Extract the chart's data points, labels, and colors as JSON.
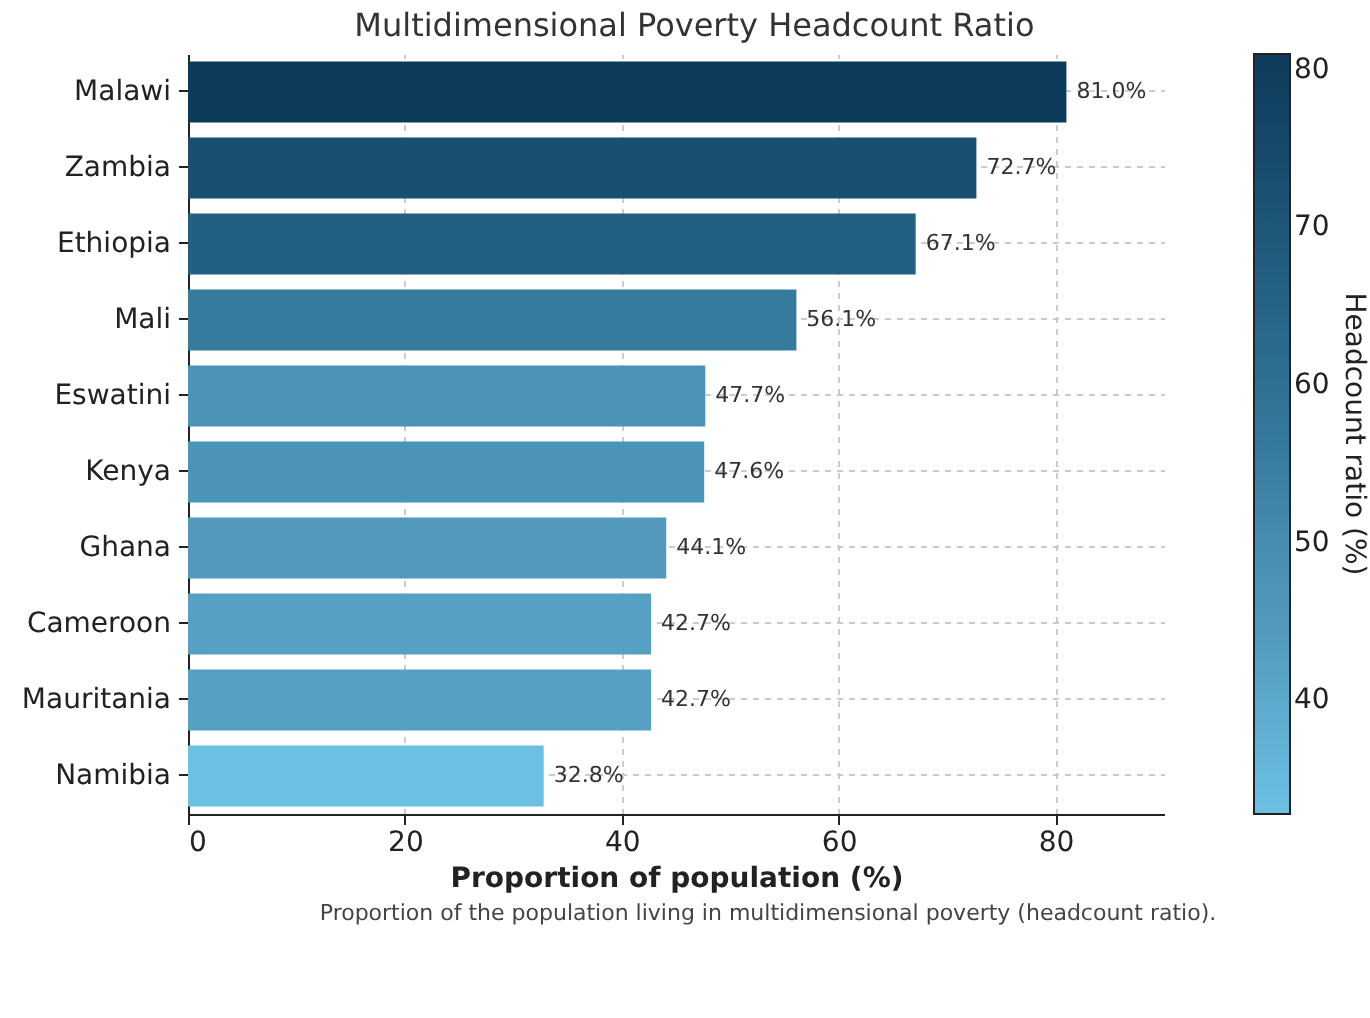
{
  "chart_data": {
    "type": "bar",
    "orientation": "horizontal",
    "title": "Multidimensional Poverty Headcount Ratio",
    "xlabel": "Proportion of population (%)",
    "clabel": "Headcount ratio (%)",
    "categories": [
      "Malawi",
      "Zambia",
      "Ethiopia",
      "Mali",
      "Eswatini",
      "Kenya",
      "Ghana",
      "Cameroon",
      "Mauritania",
      "Namibia"
    ],
    "values": [
      81.0,
      72.7,
      67.1,
      56.1,
      47.7,
      47.6,
      44.1,
      42.7,
      42.7,
      32.8
    ],
    "value_labels": [
      "81.0%",
      "72.7%",
      "67.1%",
      "56.1%",
      "47.7%",
      "47.6%",
      "44.1%",
      "42.7%",
      "42.7%",
      "32.8%"
    ],
    "colors": [
      "#0d3b5c",
      "#1a4f70",
      "#235f80",
      "#347b9e",
      "#4b94b8",
      "#4b94b8",
      "#5299bd",
      "#55a0c3",
      "#55a0c3",
      "#6cc0e4"
    ],
    "xlim": [
      0,
      90
    ],
    "xticks": [
      0,
      20,
      40,
      60,
      80
    ],
    "clim": [
      32.8,
      81.0
    ],
    "cticks": [
      40,
      50,
      60,
      70,
      80
    ],
    "grid": true,
    "annotations": [
      "Proportion of the population living in multidimensional poverty (headcount ratio)."
    ]
  }
}
